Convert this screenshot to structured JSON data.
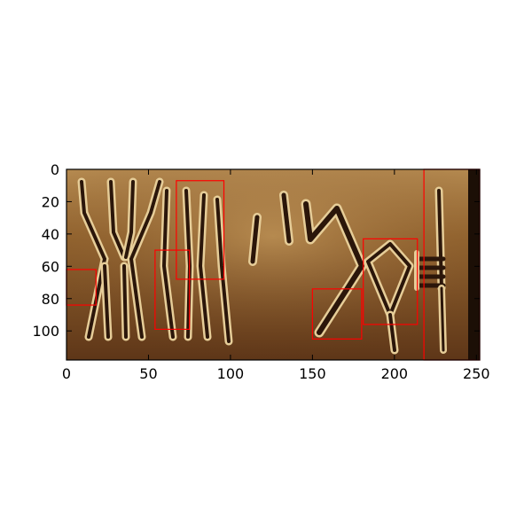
{
  "figure": {
    "image": {
      "description_hint": "engraved seal surface with carved glyphs",
      "palette": {
        "dark": "#3a2210",
        "mid": "#7a4e26",
        "light": "#b38a52",
        "highlight": "#e8cf98"
      }
    },
    "axes": {
      "xlim": [
        0,
        252
      ],
      "ylim": [
        118,
        0
      ],
      "x_ticks": [
        {
          "value": 0,
          "label": "0"
        },
        {
          "value": 50,
          "label": "50"
        },
        {
          "value": 100,
          "label": "100"
        },
        {
          "value": 150,
          "label": "150"
        },
        {
          "value": 200,
          "label": "200"
        },
        {
          "value": 250,
          "label": "250"
        }
      ],
      "y_ticks": [
        {
          "value": 0,
          "label": "0"
        },
        {
          "value": 20,
          "label": "20"
        },
        {
          "value": 40,
          "label": "40"
        },
        {
          "value": 60,
          "label": "60"
        },
        {
          "value": 80,
          "label": "80"
        },
        {
          "value": 100,
          "label": "100"
        }
      ]
    },
    "boxes_color": "#ff0000",
    "boxes": [
      {
        "id": 1,
        "x0": 0,
        "y0": 62,
        "x1": 18,
        "y1": 84
      },
      {
        "id": 2,
        "x0": 54,
        "y0": 50,
        "x1": 75,
        "y1": 99
      },
      {
        "id": 3,
        "x0": 67,
        "y0": 7,
        "x1": 96,
        "y1": 68
      },
      {
        "id": 4,
        "x0": 150,
        "y0": 74,
        "x1": 180,
        "y1": 105
      },
      {
        "id": 5,
        "x0": 181,
        "y0": 43,
        "x1": 214,
        "y1": 96
      },
      {
        "id": 6,
        "x0": 218,
        "y0": 0,
        "x1": 252,
        "y1": 118
      }
    ]
  }
}
